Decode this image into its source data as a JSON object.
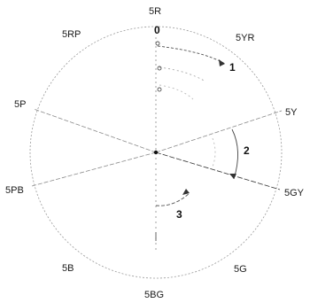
{
  "diagram": {
    "hues": [
      "5R",
      "5YR",
      "5Y",
      "5GY",
      "5G",
      "5BG",
      "5B",
      "5PB",
      "5P",
      "5RP"
    ],
    "numbers": [
      "0",
      "1",
      "2",
      "3"
    ],
    "colors": {
      "ink": "#222222",
      "circle": "#9a9a9a",
      "ray": "#8a8a8a",
      "arc": "#555555"
    }
  }
}
